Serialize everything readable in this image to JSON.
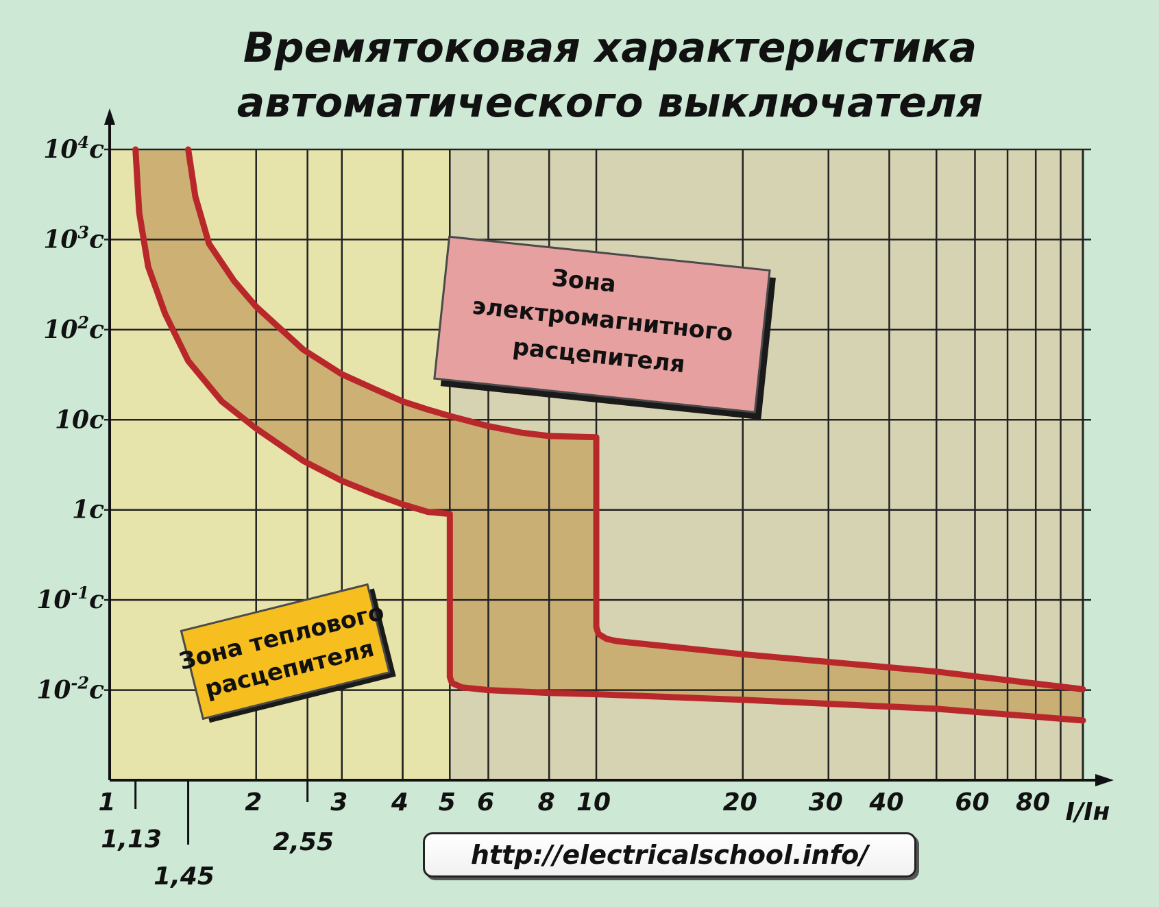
{
  "page": {
    "title_line1": "Времятоковая характеристика",
    "title_line2": "автоматического выключателя",
    "url": "http://electricalschool.info/"
  },
  "colors": {
    "background": "#cde9d6",
    "thermal_zone": "#e6e3ab",
    "electromagnetic_zone": "#d6d3b3",
    "band_fill": "#c8a86a",
    "curve": "#b8282a",
    "grid": "#222222",
    "label_thermal_bg": "#f6bf1f",
    "label_em_bg": "#e7a0a0"
  },
  "chart_data": {
    "type": "line",
    "title": "Времятоковая характеристика автоматического выключателя",
    "xlabel": "I/Iн",
    "ylabel": "",
    "x_scale": "log",
    "y_scale": "log",
    "xlim": [
      1,
      100
    ],
    "ylim": [
      0.001,
      10000
    ],
    "grid": true,
    "x_ticks": [
      {
        "v": 1,
        "label": "1"
      },
      {
        "v": 2,
        "label": "2"
      },
      {
        "v": 3,
        "label": "3"
      },
      {
        "v": 4,
        "label": "4"
      },
      {
        "v": 5,
        "label": "5"
      },
      {
        "v": 6,
        "label": "6"
      },
      {
        "v": 8,
        "label": "8"
      },
      {
        "v": 10,
        "label": "10"
      },
      {
        "v": 20,
        "label": "20"
      },
      {
        "v": 30,
        "label": "30"
      },
      {
        "v": 40,
        "label": "40"
      },
      {
        "v": 60,
        "label": "60"
      },
      {
        "v": 80,
        "label": "80"
      }
    ],
    "x_extra_grid": [
      2.55,
      4,
      50,
      70,
      90
    ],
    "x_markers": [
      {
        "v": 1.13,
        "label": "1,13"
      },
      {
        "v": 1.45,
        "label": "1,45"
      },
      {
        "v": 2.55,
        "label": "2,55"
      }
    ],
    "y_ticks": [
      {
        "v": 10000,
        "base": "10",
        "exp": "4",
        "unit": "c"
      },
      {
        "v": 1000,
        "base": "10",
        "exp": "3",
        "unit": "c"
      },
      {
        "v": 100,
        "base": "10",
        "exp": "2",
        "unit": "c"
      },
      {
        "v": 10,
        "base": "10c",
        "exp": "",
        "unit": ""
      },
      {
        "v": 1,
        "base": "1c",
        "exp": "",
        "unit": ""
      },
      {
        "v": 0.1,
        "base": "10",
        "exp": "-1",
        "unit": "c"
      },
      {
        "v": 0.01,
        "base": "10",
        "exp": "-2",
        "unit": "c"
      }
    ],
    "zones": [
      {
        "name": "Зона теплового расцепителя",
        "x_from": 1,
        "x_to": 5
      },
      {
        "name": "Зона электромагнитного расцепителя",
        "x_from": 5,
        "x_to": 100
      }
    ],
    "series": [
      {
        "x": [
          1.13,
          1.15,
          1.2,
          1.3,
          1.45,
          1.7,
          2.0,
          2.5,
          3.0,
          3.5,
          4.0,
          4.5,
          5.0,
          5.0,
          5.05,
          5.3,
          6.0,
          8.0,
          10.0,
          20.0,
          50.0,
          100.0
        ],
        "y": [
          10000,
          2000,
          500,
          150,
          45,
          16,
          8,
          3.5,
          2.1,
          1.5,
          1.15,
          0.95,
          0.9,
          0.014,
          0.012,
          0.0107,
          0.01,
          0.0093,
          0.009,
          0.0078,
          0.0062,
          0.0046
        ]
      },
      {
        "x": [
          1.45,
          1.5,
          1.6,
          1.8,
          2.0,
          2.5,
          3.0,
          3.5,
          4.0,
          4.5,
          5.0,
          6.0,
          7.0,
          8.0,
          10.0,
          10.0,
          10.1,
          10.5,
          11.0,
          20.0,
          50.0,
          100.0
        ],
        "y": [
          10000,
          3000,
          900,
          350,
          180,
          60,
          32,
          22,
          16,
          13,
          11,
          8.5,
          7.2,
          6.6,
          6.4,
          0.05,
          0.042,
          0.037,
          0.035,
          0.025,
          0.016,
          0.0102
        ]
      }
    ],
    "annotations": [
      {
        "lines": [
          "Зона",
          "электромагнитного",
          "расцепителя"
        ]
      },
      {
        "lines": [
          "Зона теплового",
          "расцепителя"
        ]
      }
    ]
  }
}
